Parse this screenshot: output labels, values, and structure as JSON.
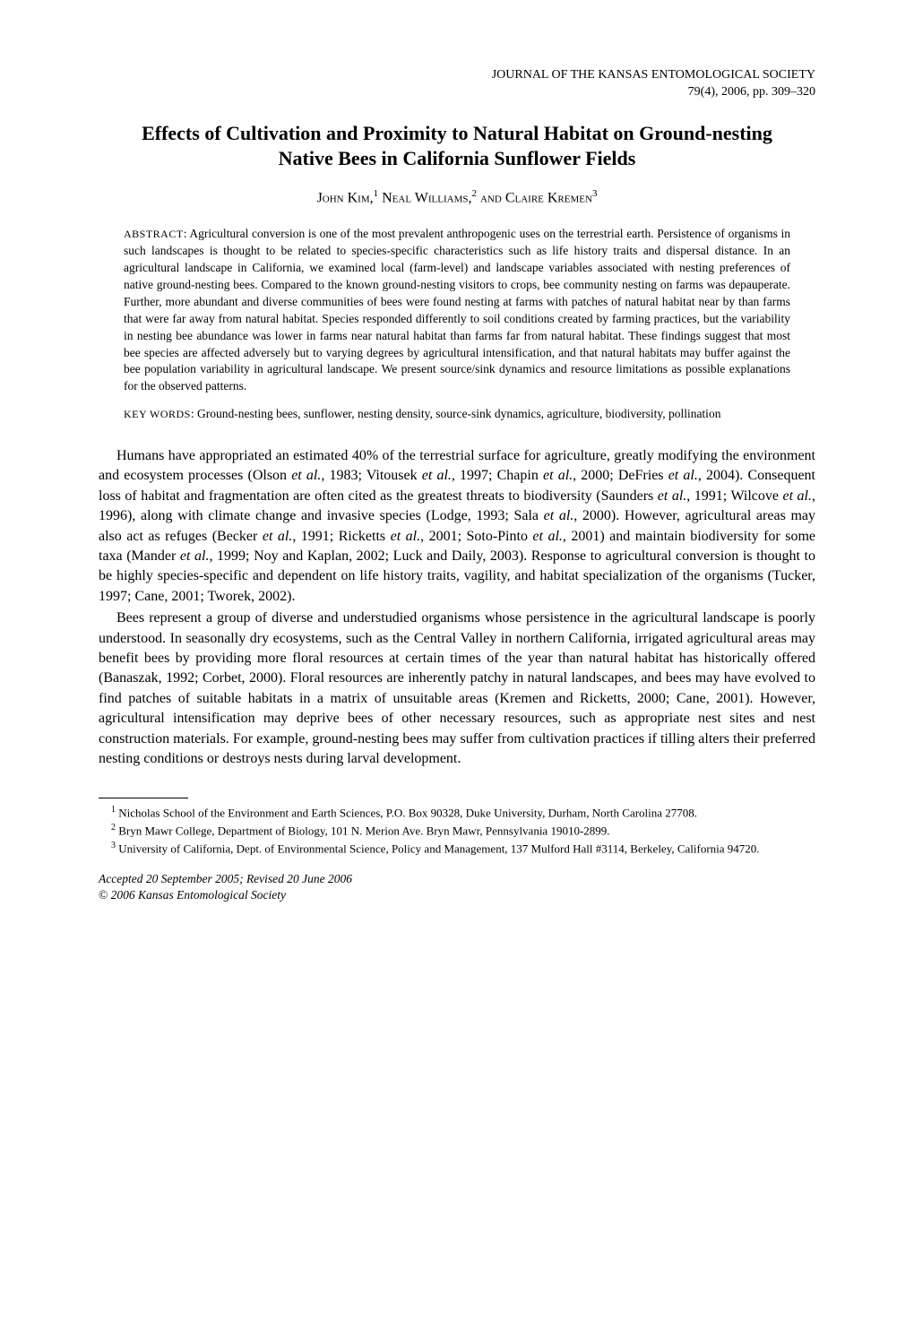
{
  "journal": {
    "name": "JOURNAL OF THE KANSAS ENTOMOLOGICAL SOCIETY",
    "citation": "79(4), 2006, pp. 309–320"
  },
  "title": "Effects of Cultivation and Proximity to Natural Habitat on Ground-nesting Native Bees in California Sunflower Fields",
  "authors": {
    "a1_name": "John Kim,",
    "a1_sup": "1",
    "a2_name": " Neal Williams,",
    "a2_sup": "2",
    "a3_connector": " and ",
    "a3_name": "Claire Kremen",
    "a3_sup": "3"
  },
  "abstract": {
    "label": "ABSTRACT",
    "text": ": Agricultural conversion is one of the most prevalent anthropogenic uses on the terrestrial earth. Persistence of organisms in such landscapes is thought to be related to species-specific characteristics such as life history traits and dispersal distance. In an agricultural landscape in California, we examined local (farm-level) and landscape variables associated with nesting preferences of native ground-nesting bees. Compared to the known ground-nesting visitors to crops, bee community nesting on farms was depauperate. Further, more abundant and diverse communities of bees were found nesting at farms with patches of natural habitat near by than farms that were far away from natural habitat. Species responded differently to soil conditions created by farming practices, but the variability in nesting bee abundance was lower in farms near natural habitat than farms far from natural habitat. These findings suggest that most bee species are affected adversely but to varying degrees by agricultural intensification, and that natural habitats may buffer against the bee population variability in agricultural landscape. We present source/sink dynamics and resource limitations as possible explanations for the observed patterns."
  },
  "keywords": {
    "label": "KEY WORDS",
    "text": ": Ground-nesting bees, sunflower, nesting density, source-sink dynamics, agriculture, biodiversity, pollination"
  },
  "body": {
    "p1_a": "Humans have appropriated an estimated 40% of the terrestrial surface for agriculture, greatly modifying the environment and ecosystem processes (Olson ",
    "p1_b": "et al.",
    "p1_c": ", 1983; Vitousek ",
    "p1_d": "et al.",
    "p1_e": ", 1997; Chapin ",
    "p1_f": "et al.",
    "p1_g": ", 2000; DeFries ",
    "p1_h": "et al.",
    "p1_i": ", 2004). Consequent loss of habitat and fragmentation are often cited as the greatest threats to biodiversity (Saunders ",
    "p1_j": "et al.",
    "p1_k": ", 1991; Wilcove ",
    "p1_l": "et al.",
    "p1_m": ", 1996), along with climate change and invasive species (Lodge, 1993; Sala ",
    "p1_n": "et al.",
    "p1_o": ", 2000). However, agricultural areas may also act as refuges (Becker ",
    "p1_p": "et al.",
    "p1_q": ", 1991; Ricketts ",
    "p1_r": "et al.",
    "p1_s": ", 2001; Soto-Pinto ",
    "p1_t": "et al.",
    "p1_u": ", 2001) and maintain biodiversity for some taxa (Mander ",
    "p1_v": "et al.",
    "p1_w": ", 1999; Noy and Kaplan, 2002; Luck and Daily, 2003). Response to agricultural conversion is thought to be highly species-specific and dependent on life history traits, vagility, and habitat specialization of the organisms (Tucker, 1997; Cane, 2001; Tworek, 2002).",
    "p2": "Bees represent a group of diverse and understudied organisms whose persistence in the agricultural landscape is poorly understood. In seasonally dry ecosystems, such as the Central Valley in northern California, irrigated agricultural areas may benefit bees by providing more floral resources at certain times of the year than natural habitat has historically offered (Banaszak, 1992; Corbet, 2000). Floral resources are inherently patchy in natural landscapes, and bees may have evolved to find patches of suitable habitats in a matrix of unsuitable areas (Kremen and Ricketts, 2000; Cane, 2001). However, agricultural intensification may deprive bees of other necessary resources, such as appropriate nest sites and nest construction materials. For example, ground-nesting bees may suffer from cultivation practices if tilling alters their preferred nesting conditions or destroys nests during larval development."
  },
  "footnotes": {
    "f1_sup": "1",
    "f1_text": " Nicholas School of the Environment and Earth Sciences, P.O. Box 90328, Duke University, Durham, North Carolina 27708.",
    "f2_sup": "2",
    "f2_text": " Bryn Mawr College, Department of Biology, 101 N. Merion Ave. Bryn Mawr, Pennsylvania 19010-2899.",
    "f3_sup": "3",
    "f3_text": " University of California, Dept. of Environmental Science, Policy and Management, 137 Mulford Hall #3114, Berkeley, California 94720."
  },
  "accepted": {
    "line1": "Accepted 20 September 2005; Revised 20 June 2006",
    "copyright_symbol": "© ",
    "line2": "2006 Kansas Entomological Society"
  }
}
